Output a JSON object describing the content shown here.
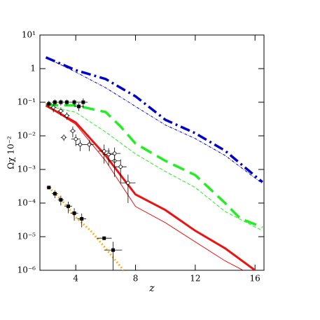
{
  "chart_data": {
    "type": "line",
    "x_label": "z",
    "y_label": "Ωχ 10⁻²",
    "xlim": [
      1.6,
      16.6
    ],
    "ylim": [
      1e-06,
      10
    ],
    "log_y": true,
    "xticks": [
      4,
      8,
      12,
      16
    ],
    "yticks": [
      {
        "value": 1e-06,
        "label": "10⁻⁶"
      },
      {
        "value": 1e-05,
        "label": "10⁻⁵"
      },
      {
        "value": 0.0001,
        "label": "10⁻⁴"
      },
      {
        "value": 0.001,
        "label": "10⁻³"
      },
      {
        "value": 0.01,
        "label": "10⁻²"
      },
      {
        "value": 0.1,
        "label": "10⁻¹"
      },
      1,
      {
        "value": 10,
        "label": "10¹"
      }
    ],
    "series": [
      {
        "type": "line",
        "color": "#0000cc",
        "dash": "dash-dot",
        "width": 3.5,
        "x": [
          2,
          4,
          6,
          7,
          8,
          10,
          12,
          14,
          16.5
        ],
        "values": [
          2.15,
          0.9,
          0.49,
          0.27,
          0.15,
          0.03,
          0.012,
          0.0036,
          0.00042
        ]
      },
      {
        "type": "line",
        "color": "#0000cc",
        "dash": "dash-dot",
        "width": 1,
        "x": [
          2,
          4,
          6,
          8,
          10,
          12,
          14,
          16.5
        ],
        "values": [
          2.15,
          0.79,
          0.27,
          0.075,
          0.021,
          0.0083,
          0.0026,
          0.00038
        ]
      },
      {
        "type": "line",
        "color": "#22ee22",
        "dash": "dash",
        "width": 3.5,
        "x": [
          2,
          4,
          6,
          7,
          8,
          10,
          12,
          14,
          15,
          16.5
        ],
        "values": [
          0.083,
          0.08,
          0.051,
          0.019,
          0.0059,
          0.0018,
          0.00068,
          0.0001,
          3.5e-05,
          1.9e-05
        ]
      },
      {
        "type": "line",
        "color": "#22ee22",
        "dash": "dash",
        "width": 1,
        "x": [
          2,
          4,
          6,
          8,
          10,
          12,
          14,
          16.5
        ],
        "values": [
          0.08,
          0.05,
          0.013,
          0.0029,
          0.00087,
          0.00029,
          5.6e-05,
          1.5e-05
        ]
      },
      {
        "type": "line",
        "color": "#ee1111",
        "dash": "solid",
        "width": 3,
        "x": [
          2,
          4,
          6,
          7,
          8,
          10,
          12,
          14,
          16
        ],
        "values": [
          0.08,
          0.025,
          0.0026,
          0.00068,
          0.00018,
          6.2e-05,
          1.5e-05,
          4.5e-06,
          1e-06
        ]
      },
      {
        "type": "line",
        "color": "#ee1111",
        "dash": "solid",
        "width": 1,
        "x": [
          2,
          4,
          6,
          8,
          10,
          12,
          14,
          15.2
        ],
        "values": [
          0.08,
          0.022,
          0.0018,
          7.9e-05,
          2.6e-05,
          7e-06,
          1.9e-06,
          1e-06
        ]
      },
      {
        "type": "line",
        "color": "#ffaa00",
        "dash": "dot",
        "width": 3,
        "x": [
          2.2,
          3,
          4,
          5,
          6,
          7.2
        ],
        "values": [
          0.00029,
          0.00013,
          3.8e-05,
          1.5e-05,
          4.5e-06,
          1e-06
        ]
      },
      {
        "type": "scatter",
        "marker": "square",
        "color": "#000000",
        "x": [
          2.2,
          2.6,
          3,
          3.5,
          3.9,
          4.4,
          5.9,
          6.5
        ],
        "values": [
          0.00029,
          0.00019,
          0.000125,
          8e-05,
          5e-05,
          3.4e-05,
          9e-06,
          4e-06
        ],
        "yerr": [
          3e-05,
          5e-05,
          4e-05,
          3e-05,
          2e-05,
          1.5e-05,
          1e-06,
          3e-06
        ],
        "xerr": [
          0.15,
          0.2,
          0.2,
          0.25,
          0.25,
          0.3,
          0.5,
          0.6
        ]
      },
      {
        "type": "scatter",
        "marker": "square",
        "color": "#000000",
        "x": [
          2.2,
          2.6,
          3,
          3.4,
          3.9,
          4.2,
          4.5
        ],
        "values": [
          0.09,
          0.1,
          0.1,
          0.1,
          0.1,
          0.075,
          0.1
        ],
        "yerr": [
          0.02,
          0.02,
          0.02,
          0.02,
          0.02,
          0.02,
          0.03
        ],
        "xerr": [
          0.2,
          0.2,
          0.2,
          0.2,
          0.3,
          0.3,
          0.3
        ]
      },
      {
        "type": "scatter",
        "marker": "circle",
        "color": "#000000",
        "x": [
          2.5,
          3,
          3.4,
          3.8,
          3.2,
          4,
          4.3,
          4.9,
          5.9,
          6.2,
          6.6,
          7,
          7.5,
          6.6
        ],
        "values": [
          0.07,
          0.055,
          0.04,
          0.014,
          0.009,
          0.008,
          0.0055,
          0.0055,
          0.0035,
          0.0028,
          0.0018,
          0.0012,
          0.0004,
          0.003
        ],
        "yerr": [
          0.02,
          0.015,
          0.01,
          0.005,
          0.002,
          0.003,
          0.002,
          0.002,
          0.002,
          0.0015,
          0.0012,
          0.0008,
          0.0003,
          0.0015
        ],
        "xerr": [
          0.2,
          0.2,
          0.2,
          0.2,
          0.2,
          0.3,
          0.3,
          0.3,
          0.4,
          0.4,
          0.4,
          0.4,
          0.5,
          0.4
        ]
      }
    ]
  }
}
